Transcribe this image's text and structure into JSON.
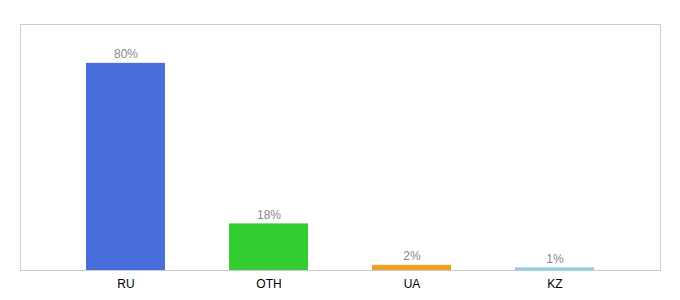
{
  "chart_data": {
    "type": "bar",
    "categories": [
      "RU",
      "OTH",
      "UA",
      "KZ"
    ],
    "values": [
      80,
      18,
      2,
      1
    ],
    "value_labels": [
      "80%",
      "18%",
      "2%",
      "1%"
    ],
    "colors": [
      "#4a6fdc",
      "#33cc33",
      "#f0a020",
      "#88ccee"
    ],
    "ylim": [
      0,
      95
    ],
    "data_labels": true,
    "tick_labels": "x",
    "grid": false
  }
}
